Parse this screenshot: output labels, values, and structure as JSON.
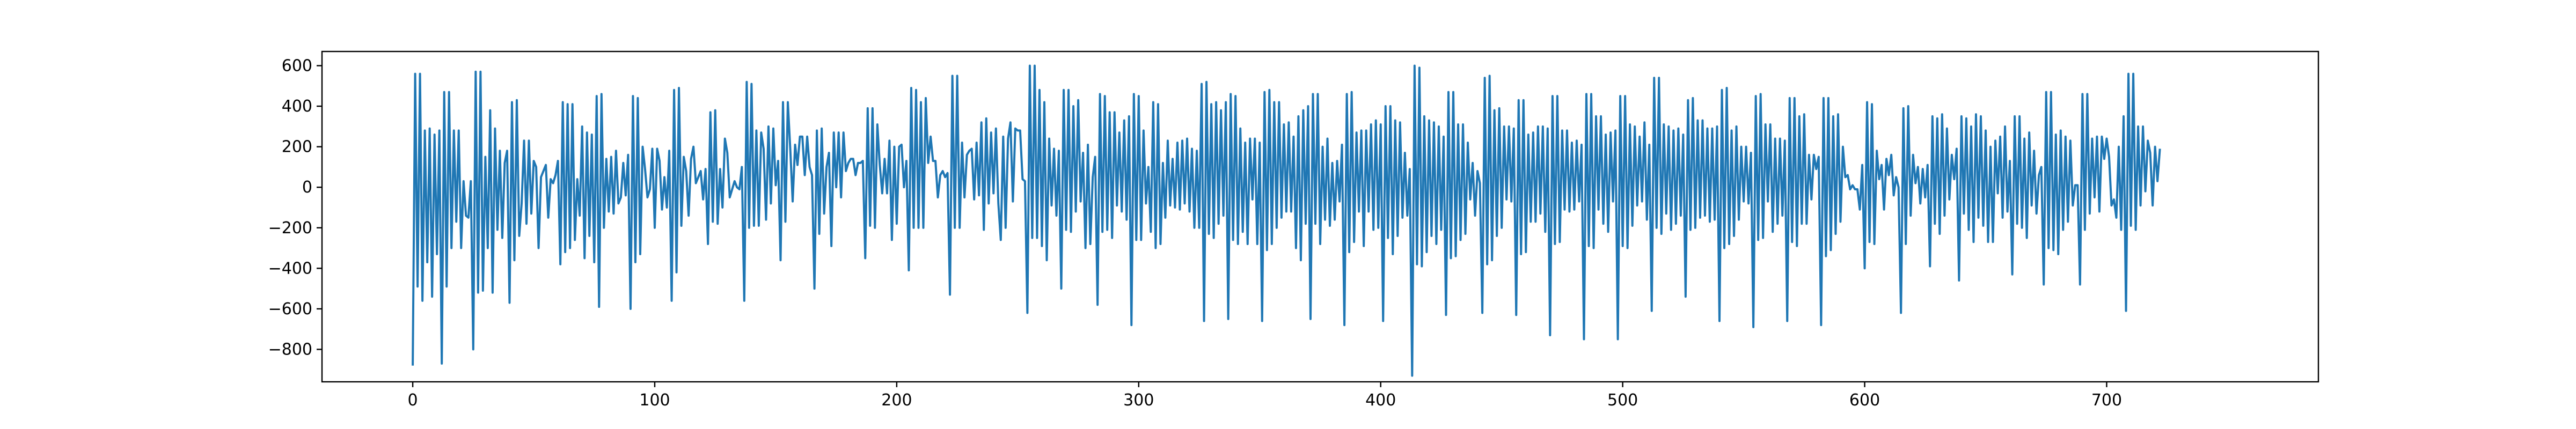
{
  "chart_data": {
    "type": "line",
    "title": "",
    "xlabel": "",
    "ylabel": "",
    "xlim": [
      -37.5,
      787.5
    ],
    "ylim": [
      -960,
      670
    ],
    "x_ticks": [
      0,
      100,
      200,
      300,
      400,
      500,
      600,
      700
    ],
    "y_ticks": [
      -800,
      -600,
      -400,
      -200,
      0,
      200,
      400,
      600
    ],
    "x_tick_labels": [
      "0",
      "100",
      "200",
      "300",
      "400",
      "500",
      "600",
      "700"
    ],
    "y_tick_labels": [
      "−800",
      "−600",
      "−400",
      "−200",
      "0",
      "200",
      "400",
      "600"
    ],
    "grid": false,
    "legend": "none",
    "series_color": "#1f77b4",
    "n_points": 750,
    "x_start": 0,
    "x_step": 1,
    "series": [
      {
        "values": [
          -880,
          560,
          -490,
          560,
          -560,
          280,
          -370,
          290,
          -540,
          260,
          -330,
          280,
          -870,
          470,
          -490,
          470,
          -300,
          280,
          -170,
          280,
          -300,
          30,
          -140,
          -150,
          30,
          -800,
          570,
          -520,
          570,
          -510,
          150,
          -300,
          380,
          -520,
          290,
          -210,
          180,
          -250,
          120,
          180,
          -570,
          420,
          -360,
          430,
          -240,
          -80,
          230,
          -180,
          230,
          -130,
          130,
          100,
          -300,
          50,
          80,
          110,
          -150,
          40,
          20,
          60,
          130,
          -380,
          420,
          -320,
          410,
          -300,
          410,
          -260,
          40,
          -140,
          300,
          -350,
          270,
          -240,
          260,
          -370,
          450,
          -590,
          460,
          -200,
          140,
          -120,
          150,
          -130,
          180,
          -80,
          -50,
          120,
          -40,
          160,
          -600,
          450,
          -370,
          440,
          -330,
          200,
          90,
          -50,
          -10,
          190,
          -200,
          190,
          130,
          -110,
          50,
          -100,
          180,
          -560,
          480,
          -420,
          490,
          -190,
          150,
          80,
          -140,
          140,
          200,
          20,
          50,
          80,
          -60,
          90,
          -280,
          370,
          -170,
          380,
          -180,
          90,
          -100,
          240,
          170,
          -50,
          -10,
          30,
          0,
          -10,
          100,
          -560,
          520,
          -200,
          510,
          -190,
          280,
          -190,
          270,
          190,
          -160,
          300,
          -80,
          290,
          10,
          130,
          -360,
          420,
          -170,
          420,
          190,
          -70,
          210,
          110,
          250,
          250,
          60,
          250,
          100,
          60,
          -500,
          280,
          -230,
          290,
          -130,
          100,
          170,
          -290,
          270,
          0,
          270,
          -50,
          270,
          80,
          120,
          140,
          140,
          60,
          120,
          120,
          130,
          -350,
          390,
          -190,
          390,
          -200,
          310,
          110,
          -30,
          140,
          -30,
          230,
          -260,
          200,
          -180,
          200,
          210,
          0,
          130,
          -410,
          490,
          -200,
          480,
          -200,
          420,
          -200,
          440,
          120,
          250,
          130,
          130,
          -50,
          60,
          80,
          50,
          70,
          -530,
          550,
          -200,
          550,
          -200,
          220,
          -50,
          160,
          180,
          190,
          -60,
          220,
          -40,
          320,
          -210,
          340,
          -80,
          270,
          -30,
          290,
          -80,
          -260,
          250,
          -200,
          240,
          320,
          -70,
          290,
          280,
          280,
          40,
          30,
          -620,
          600,
          -250,
          600,
          -250,
          480,
          -290,
          420,
          -360,
          240,
          -90,
          190,
          -140,
          180,
          -500,
          480,
          -210,
          480,
          -220,
          400,
          -120,
          430,
          -70,
          170,
          -300,
          210,
          -280,
          50,
          150,
          -580,
          460,
          -220,
          450,
          -210,
          370,
          -250,
          370,
          -90,
          270,
          -120,
          330,
          -160,
          350,
          -680,
          460,
          -260,
          450,
          -260,
          280,
          -80,
          100,
          -220,
          420,
          -300,
          410,
          -280,
          120,
          -150,
          230,
          -90,
          140,
          -100,
          220,
          -110,
          230,
          -80,
          240,
          -120,
          190,
          -200,
          180,
          -200,
          510,
          -660,
          520,
          -230,
          410,
          -250,
          420,
          -180,
          380,
          -140,
          420,
          -650,
          460,
          -260,
          450,
          -280,
          290,
          -220,
          220,
          -280,
          240,
          -60,
          240,
          -280,
          220,
          -660,
          470,
          -310,
          480,
          -280,
          420,
          -200,
          420,
          -150,
          310,
          -120,
          320,
          -120,
          250,
          -300,
          350,
          -360,
          380,
          -180,
          400,
          -650,
          460,
          -180,
          460,
          -280,
          200,
          -160,
          240,
          -190,
          120,
          -160,
          130,
          -70,
          210,
          -680,
          460,
          -320,
          470,
          -270,
          270,
          -120,
          280,
          -290,
          280,
          -120,
          310,
          -210,
          330,
          -200,
          310,
          -660,
          400,
          -250,
          400,
          -330,
          330,
          -240,
          320,
          -150,
          170,
          -140,
          90,
          -930,
          600,
          -380,
          590,
          -390,
          350,
          -320,
          330,
          -240,
          320,
          -280,
          300,
          -210,
          250,
          -630,
          470,
          -350,
          470,
          -340,
          310,
          -260,
          310,
          -230,
          220,
          -60,
          120,
          -140,
          80,
          20,
          -620,
          540,
          -380,
          550,
          -360,
          380,
          -240,
          390,
          -200,
          300,
          -60,
          300,
          -70,
          290,
          -630,
          430,
          -330,
          430,
          -320,
          260,
          -170,
          270,
          -170,
          300,
          -130,
          300,
          -220,
          290,
          -730,
          450,
          -280,
          450,
          -270,
          280,
          -110,
          280,
          -120,
          220,
          -110,
          230,
          -70,
          210,
          -750,
          460,
          -290,
          460,
          -300,
          350,
          -110,
          350,
          -180,
          260,
          -220,
          270,
          -70,
          280,
          -750,
          450,
          -290,
          450,
          -300,
          310,
          -190,
          300,
          -90,
          250,
          -70,
          320,
          -160,
          210,
          -610,
          540,
          -200,
          540,
          -230,
          310,
          -130,
          300,
          -210,
          280,
          -180,
          290,
          -140,
          260,
          -540,
          430,
          -210,
          440,
          -200,
          330,
          -150,
          330,
          -140,
          290,
          -170,
          290,
          -160,
          300,
          -660,
          480,
          -300,
          490,
          -280,
          280,
          -240,
          300,
          -160,
          200,
          -70,
          200,
          -80,
          170,
          -690,
          450,
          -260,
          460,
          -250,
          310,
          -70,
          310,
          -220,
          240,
          -180,
          240,
          -140,
          230,
          -660,
          440,
          -270,
          440,
          -290,
          350,
          -180,
          360,
          -180,
          160,
          -60,
          160,
          90,
          150,
          -680,
          440,
          -340,
          440,
          -310,
          350,
          -230,
          360,
          -170,
          200,
          50,
          60,
          -10,
          10,
          -10,
          -10,
          -110,
          110,
          -400,
          420,
          -270,
          410,
          -280,
          180,
          40,
          110,
          -110,
          140,
          60,
          160,
          -40,
          50,
          0,
          -620,
          390,
          -280,
          400,
          -140,
          160,
          20,
          100,
          -80,
          90,
          -50,
          110,
          -390,
          350,
          -180,
          340,
          -230,
          360,
          -140,
          290,
          -60,
          160,
          40,
          190,
          -460,
          350,
          -130,
          340,
          -210,
          300,
          -270,
          360,
          -150,
          350,
          -190,
          280,
          -270,
          200,
          -270,
          230,
          -30,
          250,
          -150,
          300,
          -120,
          130,
          -430,
          350,
          -180,
          350,
          -200,
          240,
          -250,
          270,
          -90,
          180,
          -130,
          60,
          100,
          -480,
          470,
          -300,
          470,
          -310,
          260,
          -330,
          280,
          -210,
          250,
          -170,
          230,
          -90,
          10,
          10,
          -480,
          460,
          -210,
          460,
          -130,
          240,
          -50,
          250,
          -120,
          250,
          140,
          240,
          150,
          -90,
          -60,
          -150,
          200,
          -210,
          350,
          -610,
          560,
          -190,
          560,
          -210,
          300,
          -90,
          300,
          -20,
          230,
          170,
          -90,
          200,
          30,
          190
        ]
      }
    ]
  }
}
